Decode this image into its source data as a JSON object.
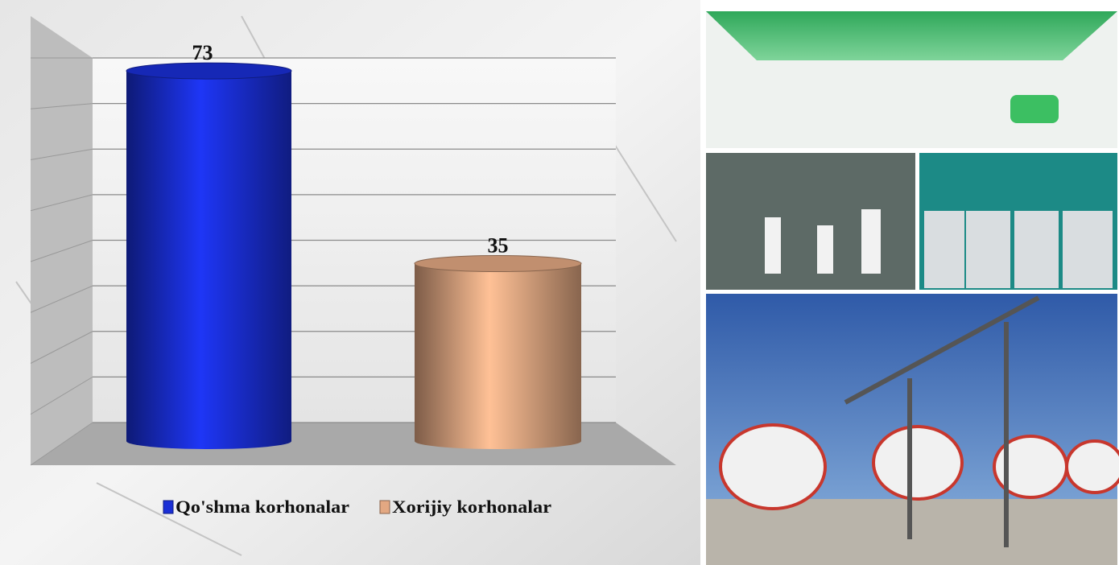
{
  "chart_data": {
    "type": "bar3d",
    "series": [
      {
        "name": "Qo'shma korhonalar",
        "color": "#1a2fd6",
        "values": [
          73
        ]
      },
      {
        "name": "Xorijiy korhonalar",
        "color": "#e3a882",
        "values": [
          35
        ]
      }
    ],
    "ylim": [
      0,
      80
    ],
    "yticks": [
      0,
      10,
      20,
      30,
      40,
      50,
      60,
      70,
      80
    ],
    "grid": true
  }
}
